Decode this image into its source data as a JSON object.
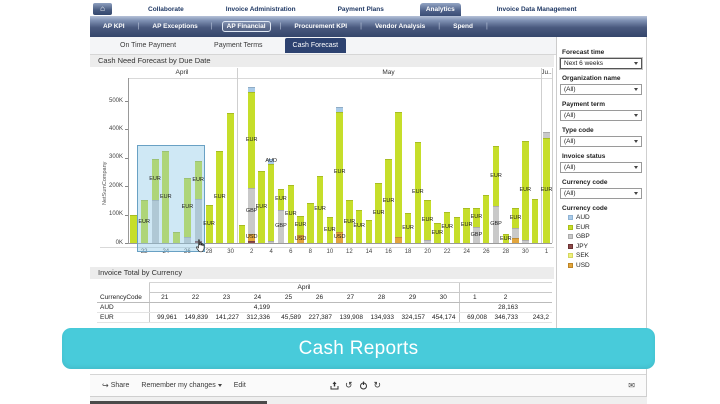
{
  "nav": {
    "home_icon": "⌂",
    "top_tabs": [
      {
        "label": "Collaborate",
        "active": false
      },
      {
        "label": "Invoice Administration",
        "active": false
      },
      {
        "label": "Payment Plans",
        "active": false
      },
      {
        "label": "Analytics",
        "active": true
      },
      {
        "label": "Invoice Data Management",
        "active": false
      }
    ],
    "module_tabs": [
      {
        "label": "AP KPI",
        "active": false
      },
      {
        "label": "AP Exceptions",
        "active": false
      },
      {
        "label": "AP Financial",
        "active": true
      },
      {
        "label": "Procurement KPI",
        "active": false
      },
      {
        "label": "Vendor Analysis",
        "active": false
      },
      {
        "label": "Spend",
        "active": false
      }
    ],
    "page_tabs": [
      {
        "label": "On Time Payment",
        "active": false
      },
      {
        "label": "Payment Terms",
        "active": false
      },
      {
        "label": "Cash Forecast",
        "active": true
      }
    ]
  },
  "chart_section": {
    "title": "Cash Need Forecast by Due Date"
  },
  "chart_data": {
    "type": "bar",
    "stacked": true,
    "title": "Cash Need Forecast by Due Date",
    "ylabel": "NetSumCompany",
    "yticks": [
      "0K",
      "100K",
      "200K",
      "300K",
      "400K",
      "500K"
    ],
    "ylim": [
      0,
      580
    ],
    "unit": "thousands",
    "legend_position": "right",
    "grid": false,
    "colors": {
      "AUD": "#aacbe8",
      "EUR": "#c6de2a",
      "GBP": "#c9c9c9",
      "JPY": "#8d4a4a",
      "SEK": "#eef07c",
      "USD": "#e2a53c"
    },
    "month_groups": [
      {
        "label": "April",
        "start": 21,
        "count": 10
      },
      {
        "label": "May",
        "start": 1,
        "count": 31
      },
      {
        "label": "Ju..",
        "start": 1,
        "count": 1
      }
    ],
    "xticks": [
      [
        22,
        24,
        26,
        28,
        30
      ],
      [
        2,
        4,
        6,
        8,
        10,
        12,
        14,
        16,
        18,
        20,
        22,
        24,
        26,
        28,
        30
      ],
      [
        1
      ]
    ],
    "selection": {
      "month": 0,
      "from_date": 22,
      "to_date": 27,
      "top_value": 345
    },
    "bars": [
      {
        "m": 0,
        "d": 21,
        "s": [
          [
            "EUR",
            100
          ]
        ],
        "l": []
      },
      {
        "m": 0,
        "d": 22,
        "s": [
          [
            "EUR",
            150
          ]
        ],
        "l": [
          "EUR"
        ]
      },
      {
        "m": 0,
        "d": 23,
        "s": [
          [
            "GBP",
            153
          ],
          [
            "EUR",
            143
          ]
        ],
        "l": [
          "EUR"
        ]
      },
      {
        "m": 0,
        "d": 24,
        "s": [
          [
            "EUR",
            325
          ]
        ],
        "l": [
          "EUR"
        ]
      },
      {
        "m": 0,
        "d": 25,
        "s": [
          [
            "EUR",
            40
          ]
        ],
        "l": []
      },
      {
        "m": 0,
        "d": 26,
        "s": [
          [
            "GBP",
            20
          ],
          [
            "EUR",
            210
          ]
        ],
        "l": [
          "EUR"
        ]
      },
      {
        "m": 0,
        "d": 27,
        "s": [
          [
            "JPY",
            8
          ],
          [
            "GBP",
            147
          ],
          [
            "EUR",
            135
          ]
        ],
        "l": [
          "EUR"
        ]
      },
      {
        "m": 0,
        "d": 28,
        "s": [
          [
            "EUR",
            135
          ]
        ],
        "l": [
          "EUR"
        ]
      },
      {
        "m": 0,
        "d": 29,
        "s": [
          [
            "EUR",
            325
          ]
        ],
        "l": [
          "EUR"
        ]
      },
      {
        "m": 0,
        "d": 30,
        "s": [
          [
            "EUR",
            458
          ]
        ],
        "l": []
      },
      {
        "m": 1,
        "d": 1,
        "s": [
          [
            "EUR",
            65
          ]
        ],
        "l": []
      },
      {
        "m": 1,
        "d": 2,
        "s": [
          [
            "JPY",
            8
          ],
          [
            "USD",
            25
          ],
          [
            "GBP",
            160
          ],
          [
            "EUR",
            337
          ],
          [
            "AUD",
            20
          ]
        ],
        "l": [
          "USD",
          "GBP",
          "EUR"
        ]
      },
      {
        "m": 1,
        "d": 3,
        "s": [
          [
            "EUR",
            255
          ]
        ],
        "l": [
          "EUR"
        ]
      },
      {
        "m": 1,
        "d": 4,
        "s": [
          [
            "GBP",
            8
          ],
          [
            "EUR",
            270
          ],
          [
            "AUD",
            18
          ]
        ],
        "l": [
          "AUD"
        ]
      },
      {
        "m": 1,
        "d": 5,
        "s": [
          [
            "GBP",
            115
          ],
          [
            "EUR",
            75
          ]
        ],
        "l": [
          "GBP",
          "EUR"
        ]
      },
      {
        "m": 1,
        "d": 6,
        "s": [
          [
            "EUR",
            205
          ]
        ],
        "l": [
          "EUR"
        ]
      },
      {
        "m": 1,
        "d": 7,
        "s": [
          [
            "USD",
            28
          ],
          [
            "EUR",
            68
          ]
        ],
        "l": [
          "USD",
          "EUR"
        ]
      },
      {
        "m": 1,
        "d": 8,
        "s": [
          [
            "EUR",
            140
          ]
        ],
        "l": []
      },
      {
        "m": 1,
        "d": 9,
        "s": [
          [
            "EUR",
            235
          ]
        ],
        "l": [
          "EUR"
        ]
      },
      {
        "m": 1,
        "d": 10,
        "s": [
          [
            "EUR",
            90
          ]
        ],
        "l": [
          "EUR"
        ]
      },
      {
        "m": 1,
        "d": 11,
        "s": [
          [
            "USD",
            40
          ],
          [
            "EUR",
            420
          ],
          [
            "AUD",
            18
          ]
        ],
        "l": [
          "USD",
          "EUR"
        ]
      },
      {
        "m": 1,
        "d": 12,
        "s": [
          [
            "EUR",
            150
          ]
        ],
        "l": [
          "EUR"
        ]
      },
      {
        "m": 1,
        "d": 13,
        "s": [
          [
            "EUR",
            115
          ]
        ],
        "l": [
          "EUR"
        ]
      },
      {
        "m": 1,
        "d": 14,
        "s": [
          [
            "EUR",
            80
          ]
        ],
        "l": []
      },
      {
        "m": 1,
        "d": 15,
        "s": [
          [
            "EUR",
            210
          ]
        ],
        "l": [
          "EUR"
        ]
      },
      {
        "m": 1,
        "d": 16,
        "s": [
          [
            "EUR",
            295
          ]
        ],
        "l": [
          "EUR"
        ]
      },
      {
        "m": 1,
        "d": 17,
        "s": [
          [
            "USD",
            20
          ],
          [
            "EUR",
            440
          ]
        ],
        "l": []
      },
      {
        "m": 1,
        "d": 18,
        "s": [
          [
            "EUR",
            105
          ]
        ],
        "l": [
          "EUR"
        ]
      },
      {
        "m": 1,
        "d": 19,
        "s": [
          [
            "EUR",
            355
          ]
        ],
        "l": [
          "EUR"
        ]
      },
      {
        "m": 1,
        "d": 20,
        "s": [
          [
            "GBP",
            12
          ],
          [
            "EUR",
            140
          ]
        ],
        "l": [
          "EUR"
        ]
      },
      {
        "m": 1,
        "d": 21,
        "s": [
          [
            "EUR",
            70
          ]
        ],
        "l": [
          "EUR"
        ]
      },
      {
        "m": 1,
        "d": 22,
        "s": [
          [
            "EUR",
            110
          ]
        ],
        "l": [
          "EUR"
        ]
      },
      {
        "m": 1,
        "d": 23,
        "s": [
          [
            "EUR",
            90
          ]
        ],
        "l": []
      },
      {
        "m": 1,
        "d": 24,
        "s": [
          [
            "EUR",
            125
          ]
        ],
        "l": [
          "EUR"
        ]
      },
      {
        "m": 1,
        "d": 25,
        "s": [
          [
            "GBP",
            55
          ],
          [
            "EUR",
            70
          ]
        ],
        "l": [
          "GBP",
          "EUR"
        ]
      },
      {
        "m": 1,
        "d": 26,
        "s": [
          [
            "EUR",
            170
          ]
        ],
        "l": []
      },
      {
        "m": 1,
        "d": 27,
        "s": [
          [
            "GBP",
            130
          ],
          [
            "EUR",
            210
          ]
        ],
        "l": [
          "GBP",
          "EUR"
        ]
      },
      {
        "m": 1,
        "d": 28,
        "s": [
          [
            "EUR",
            30
          ]
        ],
        "l": [
          "EUR"
        ]
      },
      {
        "m": 1,
        "d": 29,
        "s": [
          [
            "USD",
            18
          ],
          [
            "GBP",
            35
          ],
          [
            "EUR",
            70
          ]
        ],
        "l": [
          "EUR"
        ]
      },
      {
        "m": 1,
        "d": 30,
        "s": [
          [
            "GBP",
            12
          ],
          [
            "EUR",
            346
          ]
        ],
        "l": [
          "EUR"
        ]
      },
      {
        "m": 1,
        "d": 31,
        "s": [
          [
            "EUR",
            155
          ]
        ],
        "l": []
      },
      {
        "m": 2,
        "d": 1,
        "s": [
          [
            "EUR",
            370
          ],
          [
            "GBP",
            20
          ]
        ],
        "l": [
          "EUR"
        ]
      }
    ]
  },
  "filters": {
    "items": [
      {
        "label": "Forecast time",
        "value": "Next 6 weeks",
        "emphasized": true
      },
      {
        "label": "Organization name",
        "value": "(All)",
        "emphasized": false
      },
      {
        "label": "Payment term",
        "value": "(All)",
        "emphasized": false
      },
      {
        "label": "Type code",
        "value": "(All)",
        "emphasized": false
      },
      {
        "label": "Invoice status",
        "value": "(All)",
        "emphasized": false
      },
      {
        "label": "Currency code",
        "value": "(All)",
        "emphasized": false
      }
    ],
    "legend": {
      "title": "Currency code",
      "entries": [
        {
          "code": "AUD",
          "fill": "#aacbe8",
          "border": "#8fb3d4"
        },
        {
          "code": "EUR",
          "fill": "#c6de2a",
          "border": "#a9bf17"
        },
        {
          "code": "GBP",
          "fill": "#c9c9c9",
          "border": "#ababab"
        },
        {
          "code": "JPY",
          "fill": "#8d4a4a",
          "border": "#6b3333"
        },
        {
          "code": "SEK",
          "fill": "#eef07c",
          "border": "#d5d75f"
        },
        {
          "code": "USD",
          "fill": "#e2a53c",
          "border": "#bd8526"
        }
      ]
    }
  },
  "table": {
    "title": "Invoice Total by Currency",
    "corner_label": "CurrencyCode",
    "groups": [
      {
        "label": "April",
        "span": 10
      },
      {
        "label": "",
        "span": 3
      }
    ],
    "columns": [
      "21",
      "22",
      "23",
      "24",
      "25",
      "26",
      "27",
      "28",
      "29",
      "30",
      "1",
      "2",
      ""
    ],
    "rows": [
      {
        "currency": "AUD",
        "values": [
          "",
          "",
          "",
          "4,199",
          "",
          "",
          "",
          "",
          "",
          "",
          "",
          "28,163",
          ""
        ]
      },
      {
        "currency": "EUR",
        "values": [
          "99,961",
          "149,839",
          "141,227",
          "312,336",
          "45,589",
          "227,387",
          "139,908",
          "134,933",
          "324,157",
          "454,174",
          "69,008",
          "346,733",
          "243,2"
        ]
      }
    ]
  },
  "banner": {
    "label": "Cash Reports",
    "color": "#48cbda"
  },
  "toolbar": {
    "share_label": "Share",
    "remember_label": "Remember my changes",
    "edit_label": "Edit",
    "share_icon": "↪",
    "undo_icon": "↺",
    "refresh_icon": "↻",
    "mail_icon": "✉"
  }
}
